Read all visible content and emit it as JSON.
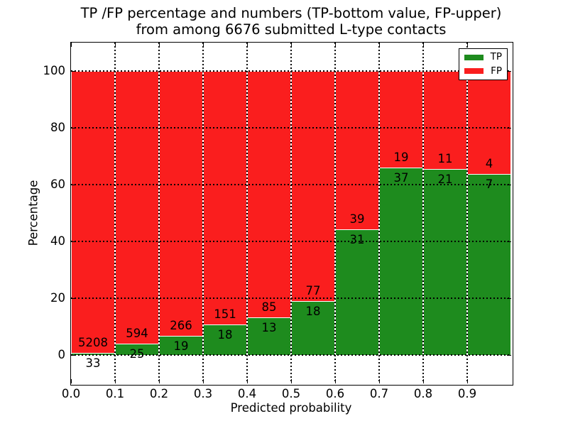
{
  "chart_data": {
    "type": "bar",
    "stacked": true,
    "title": "TP /FP percentage and numbers (TP-bottom value, FP-upper)\nfrom among 6676 submitted L-type contacts",
    "title_line1": "TP /FP percentage and numbers (TP-bottom value, FP-upper)",
    "title_line2": "from among 6676 submitted L-type contacts",
    "xlabel": "Predicted probability",
    "ylabel": "Percentage",
    "total_contacts": 6676,
    "xlim": [
      0.0,
      1.0
    ],
    "ylim": [
      -10,
      110
    ],
    "bin_width": 0.1,
    "xtick_labels": [
      "0.0",
      "0.1",
      "0.2",
      "0.3",
      "0.4",
      "0.5",
      "0.6",
      "0.7",
      "0.8",
      "0.9"
    ],
    "ytick_values": [
      0,
      20,
      40,
      60,
      80,
      100
    ],
    "grid": "dotted black, both axes, drawn above bars",
    "annotation_note": "FP count printed above segment boundary, TP count below",
    "bins": [
      {
        "x_start": 0.0,
        "x_end": 0.1,
        "tp": 33,
        "fp": 5208,
        "tp_pct": 0.63
      },
      {
        "x_start": 0.1,
        "x_end": 0.2,
        "tp": 25,
        "fp": 594,
        "tp_pct": 4.04
      },
      {
        "x_start": 0.2,
        "x_end": 0.3,
        "tp": 19,
        "fp": 266,
        "tp_pct": 6.67
      },
      {
        "x_start": 0.3,
        "x_end": 0.4,
        "tp": 18,
        "fp": 151,
        "tp_pct": 10.65
      },
      {
        "x_start": 0.4,
        "x_end": 0.5,
        "tp": 13,
        "fp": 85,
        "tp_pct": 13.27
      },
      {
        "x_start": 0.5,
        "x_end": 0.6,
        "tp": 18,
        "fp": 77,
        "tp_pct": 18.95
      },
      {
        "x_start": 0.6,
        "x_end": 0.7,
        "tp": 31,
        "fp": 39,
        "tp_pct": 44.29
      },
      {
        "x_start": 0.7,
        "x_end": 0.8,
        "tp": 37,
        "fp": 19,
        "tp_pct": 66.07
      },
      {
        "x_start": 0.8,
        "x_end": 0.9,
        "tp": 21,
        "fp": 11,
        "tp_pct": 65.63
      },
      {
        "x_start": 0.9,
        "x_end": 1.0,
        "tp": 7,
        "fp": 4,
        "tp_pct": 63.64
      }
    ],
    "series": [
      {
        "name": "TP",
        "color": "#1e8b1e"
      },
      {
        "name": "FP",
        "color": "#fa1e1e"
      }
    ],
    "legend": {
      "position": "upper right",
      "entries": [
        {
          "label": "TP",
          "color": "#1e8b1e"
        },
        {
          "label": "FP",
          "color": "#fa1e1e"
        }
      ]
    },
    "bar_edge_color": "#ffffff"
  }
}
